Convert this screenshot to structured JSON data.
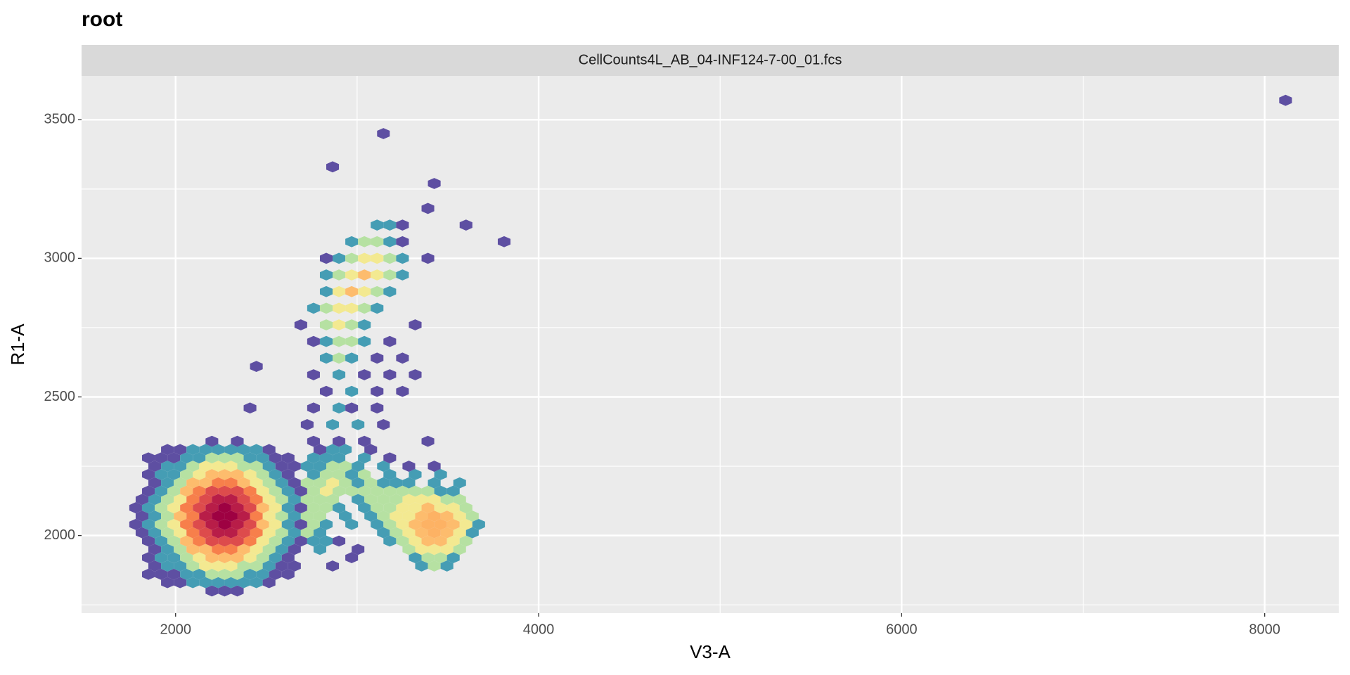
{
  "chart_data": {
    "type": "hexbin",
    "title": "root",
    "strip_label": "CellCounts4L_AB_04-INF124-7-00_01.fcs",
    "xlabel": "V3-A",
    "ylabel": "R1-A",
    "xlim": [
      1482,
      8408
    ],
    "ylim": [
      1720,
      3658
    ],
    "xticks": [
      2000,
      4000,
      6000,
      8000
    ],
    "yticks": [
      2000,
      2500,
      3000,
      3500
    ],
    "xminor": [
      3000,
      5000,
      7000
    ],
    "yminor": [
      1750,
      2250,
      2750,
      3250
    ],
    "grid": true,
    "binwidth": [
      70,
      30
    ],
    "fill_trans": "log",
    "colors": [
      "#5e4fa2",
      "#3288bd",
      "#66c2a5",
      "#abdda4",
      "#e6f598",
      "#fee08b",
      "#fdae61",
      "#f46d43",
      "#d53e4f",
      "#9e0142"
    ],
    "rows": [
      {
        "y": 1800,
        "x": [
          2200,
          2270,
          2340
        ],
        "values": [
          1,
          1,
          1
        ]
      },
      {
        "y": 1830,
        "x": [
          1955,
          2025,
          2095,
          2165,
          2235,
          2305,
          2375,
          2445,
          2515
        ],
        "values": [
          1,
          1,
          2,
          2,
          2,
          2,
          2,
          2,
          1
        ]
      },
      {
        "y": 1860,
        "x": [
          1850,
          1920,
          1990,
          2060,
          2130,
          2200,
          2270,
          2340,
          2410,
          2480,
          2550,
          2620
        ],
        "values": [
          1,
          1,
          1,
          2,
          2,
          5,
          5,
          5,
          2,
          2,
          1,
          1
        ]
      },
      {
        "y": 1890,
        "x": [
          1885,
          1955,
          2025,
          2095,
          2165,
          2235,
          2305,
          2375,
          2445,
          2515,
          2585,
          2655,
          2865,
          3355,
          3425,
          3495
        ],
        "values": [
          1,
          2,
          2,
          5,
          10,
          10,
          10,
          5,
          5,
          2,
          1,
          1,
          1,
          2,
          5,
          2
        ]
      },
      {
        "y": 1920,
        "x": [
          1850,
          1920,
          1990,
          2060,
          2130,
          2200,
          2270,
          2340,
          2410,
          2480,
          2550,
          2620,
          2970,
          3320,
          3390,
          3460,
          3530
        ],
        "values": [
          1,
          2,
          2,
          5,
          10,
          18,
          18,
          18,
          10,
          5,
          2,
          1,
          1,
          2,
          5,
          5,
          2
        ]
      },
      {
        "y": 1950,
        "x": [
          1885,
          1955,
          2025,
          2095,
          2165,
          2235,
          2305,
          2375,
          2445,
          2515,
          2585,
          2655,
          2795,
          3005,
          3285,
          3355,
          3425,
          3495,
          3565
        ],
        "values": [
          1,
          2,
          5,
          18,
          18,
          30,
          30,
          18,
          10,
          5,
          2,
          1,
          2,
          1,
          5,
          10,
          10,
          10,
          5
        ]
      },
      {
        "y": 1980,
        "x": [
          1850,
          1920,
          1990,
          2060,
          2130,
          2200,
          2270,
          2340,
          2410,
          2480,
          2550,
          2620,
          2690,
          2760,
          2830,
          2900,
          3180,
          3250,
          3320,
          3390,
          3460,
          3530,
          3600
        ],
        "values": [
          1,
          2,
          5,
          18,
          30,
          50,
          50,
          50,
          30,
          10,
          5,
          2,
          1,
          2,
          2,
          1,
          2,
          5,
          10,
          18,
          18,
          10,
          5
        ]
      },
      {
        "y": 2010,
        "x": [
          1815,
          1885,
          1955,
          2025,
          2095,
          2165,
          2235,
          2305,
          2375,
          2445,
          2515,
          2585,
          2655,
          2725,
          2795,
          3145,
          3215,
          3285,
          3355,
          3425,
          3495,
          3565,
          3635
        ],
        "values": [
          1,
          2,
          5,
          10,
          30,
          50,
          75,
          75,
          50,
          30,
          10,
          5,
          2,
          5,
          2,
          2,
          5,
          10,
          18,
          20,
          18,
          10,
          2
        ]
      },
      {
        "y": 2040,
        "x": [
          1780,
          1850,
          1920,
          1990,
          2060,
          2130,
          2200,
          2270,
          2340,
          2410,
          2480,
          2550,
          2620,
          2690,
          2760,
          2830,
          2970,
          3110,
          3180,
          3250,
          3320,
          3390,
          3460,
          3530,
          3600,
          3670
        ],
        "values": [
          1,
          2,
          5,
          10,
          30,
          50,
          75,
          95,
          75,
          50,
          18,
          10,
          2,
          1,
          5,
          2,
          2,
          2,
          5,
          10,
          18,
          20,
          20,
          18,
          10,
          2
        ]
      },
      {
        "y": 2070,
        "x": [
          1815,
          1885,
          1955,
          2025,
          2095,
          2165,
          2235,
          2305,
          2375,
          2445,
          2515,
          2585,
          2655,
          2725,
          2795,
          2935,
          3075,
          3145,
          3215,
          3285,
          3355,
          3425,
          3495,
          3565,
          3635
        ],
        "values": [
          1,
          2,
          5,
          18,
          30,
          75,
          95,
          95,
          75,
          30,
          10,
          5,
          2,
          5,
          5,
          2,
          2,
          5,
          10,
          10,
          18,
          20,
          18,
          10,
          5
        ]
      },
      {
        "y": 2100,
        "x": [
          1780,
          1850,
          1920,
          1990,
          2060,
          2130,
          2200,
          2270,
          2340,
          2410,
          2480,
          2550,
          2620,
          2690,
          2760,
          2830,
          2900,
          3040,
          3110,
          3180,
          3250,
          3320,
          3390,
          3460,
          3530,
          3600
        ],
        "values": [
          1,
          2,
          5,
          10,
          30,
          50,
          75,
          95,
          75,
          50,
          18,
          10,
          2,
          1,
          5,
          5,
          2,
          2,
          5,
          5,
          10,
          10,
          18,
          10,
          10,
          5
        ]
      },
      {
        "y": 2130,
        "x": [
          1815,
          1885,
          1955,
          2025,
          2095,
          2165,
          2235,
          2305,
          2375,
          2445,
          2515,
          2585,
          2655,
          2725,
          2795,
          2865,
          3005,
          3075,
          3145,
          3215,
          3285,
          3355,
          3425,
          3495,
          3565
        ],
        "values": [
          1,
          2,
          5,
          10,
          30,
          50,
          75,
          75,
          50,
          30,
          10,
          5,
          2,
          5,
          5,
          5,
          2,
          5,
          5,
          5,
          10,
          10,
          10,
          5,
          5
        ]
      },
      {
        "y": 2160,
        "x": [
          1850,
          1920,
          1990,
          2060,
          2130,
          2200,
          2270,
          2340,
          2410,
          2480,
          2550,
          2620,
          2690,
          2760,
          2830,
          2900,
          2970,
          3040,
          3110,
          3180,
          3250,
          3320,
          3390,
          3460,
          3530
        ],
        "values": [
          1,
          2,
          5,
          18,
          30,
          50,
          50,
          50,
          30,
          10,
          5,
          2,
          1,
          5,
          10,
          5,
          5,
          5,
          5,
          5,
          5,
          5,
          5,
          2,
          2
        ]
      },
      {
        "y": 2190,
        "x": [
          1885,
          1955,
          2025,
          2095,
          2165,
          2235,
          2305,
          2375,
          2445,
          2515,
          2585,
          2655,
          2725,
          2795,
          2865,
          2935,
          3005,
          3075,
          3145,
          3215,
          3285,
          3425,
          3565
        ],
        "values": [
          1,
          2,
          5,
          18,
          18,
          30,
          30,
          18,
          10,
          5,
          2,
          1,
          5,
          5,
          10,
          5,
          2,
          5,
          2,
          2,
          2,
          2,
          2
        ]
      },
      {
        "y": 2220,
        "x": [
          1850,
          1920,
          1990,
          2060,
          2130,
          2200,
          2270,
          2340,
          2410,
          2480,
          2550,
          2620,
          2760,
          2830,
          2900,
          2970,
          3040,
          3180,
          3320,
          3460
        ],
        "values": [
          1,
          2,
          2,
          5,
          10,
          18,
          18,
          18,
          10,
          5,
          2,
          1,
          2,
          5,
          5,
          2,
          5,
          2,
          2,
          2
        ]
      },
      {
        "y": 2250,
        "x": [
          1885,
          1955,
          2025,
          2095,
          2165,
          2235,
          2305,
          2375,
          2445,
          2515,
          2585,
          2655,
          2725,
          2795,
          2865,
          2935,
          3005,
          3145,
          3285,
          3425
        ],
        "values": [
          1,
          2,
          2,
          5,
          10,
          10,
          10,
          5,
          5,
          2,
          1,
          1,
          2,
          2,
          5,
          5,
          2,
          2,
          1,
          1
        ]
      },
      {
        "y": 2280,
        "x": [
          1850,
          1920,
          1990,
          2060,
          2130,
          2200,
          2270,
          2340,
          2410,
          2480,
          2550,
          2620,
          2760,
          2830,
          2900,
          3040,
          3180
        ],
        "values": [
          1,
          1,
          1,
          2,
          2,
          5,
          5,
          5,
          2,
          2,
          1,
          1,
          2,
          2,
          2,
          2,
          1
        ]
      },
      {
        "y": 2310,
        "x": [
          1955,
          2025,
          2095,
          2165,
          2235,
          2305,
          2375,
          2445,
          2515,
          2795,
          2865,
          2935,
          3075
        ],
        "values": [
          1,
          1,
          2,
          2,
          2,
          2,
          2,
          2,
          1,
          1,
          2,
          2,
          1
        ]
      },
      {
        "y": 2340,
        "x": [
          2200,
          2340,
          2760,
          2900,
          3040,
          3390
        ],
        "values": [
          1,
          1,
          1,
          1,
          1,
          1
        ]
      },
      {
        "y": 2400,
        "x": [
          2725,
          2865,
          3005,
          3145
        ],
        "values": [
          1,
          2,
          2,
          1
        ]
      },
      {
        "y": 2460,
        "x": [
          2410,
          2760,
          2900,
          2970,
          3110
        ],
        "values": [
          1,
          1,
          2,
          1,
          1
        ]
      },
      {
        "y": 2520,
        "x": [
          2830,
          2970,
          3110,
          3250
        ],
        "values": [
          1,
          2,
          1,
          1
        ]
      },
      {
        "y": 2580,
        "x": [
          2760,
          2900,
          3040,
          3180,
          3320
        ],
        "values": [
          1,
          2,
          1,
          1,
          1
        ]
      },
      {
        "y": 2610,
        "x": [
          2445
        ],
        "values": [
          1
        ]
      },
      {
        "y": 2640,
        "x": [
          2830,
          2900,
          2970,
          3110,
          3250
        ],
        "values": [
          2,
          5,
          2,
          1,
          1
        ]
      },
      {
        "y": 2700,
        "x": [
          2760,
          2830,
          2900,
          2970,
          3040,
          3180
        ],
        "values": [
          1,
          2,
          5,
          5,
          2,
          1
        ]
      },
      {
        "y": 2760,
        "x": [
          2690,
          2830,
          2900,
          2970,
          3040,
          3320
        ],
        "values": [
          1,
          5,
          10,
          5,
          2,
          1
        ]
      },
      {
        "y": 2820,
        "x": [
          2760,
          2830,
          2900,
          2970,
          3040,
          3110
        ],
        "values": [
          2,
          5,
          10,
          10,
          5,
          2
        ]
      },
      {
        "y": 2880,
        "x": [
          2830,
          2900,
          2970,
          3040,
          3110,
          3180
        ],
        "values": [
          2,
          10,
          18,
          10,
          5,
          2
        ]
      },
      {
        "y": 2940,
        "x": [
          2830,
          2900,
          2970,
          3040,
          3110,
          3180,
          3250
        ],
        "values": [
          2,
          5,
          10,
          18,
          10,
          5,
          2
        ]
      },
      {
        "y": 3000,
        "x": [
          2830,
          2900,
          2970,
          3040,
          3110,
          3180,
          3250,
          3390
        ],
        "values": [
          1,
          2,
          5,
          10,
          10,
          5,
          2,
          1
        ]
      },
      {
        "y": 3060,
        "x": [
          2970,
          3040,
          3110,
          3180,
          3250,
          3810
        ],
        "values": [
          2,
          5,
          5,
          2,
          1,
          1
        ]
      },
      {
        "y": 3120,
        "x": [
          3110,
          3180,
          3250,
          3600
        ],
        "values": [
          2,
          2,
          1,
          1
        ]
      },
      {
        "y": 3180,
        "x": [
          3390
        ],
        "values": [
          1
        ]
      },
      {
        "y": 3270,
        "x": [
          3425
        ],
        "values": [
          1
        ]
      },
      {
        "y": 3330,
        "x": [
          2865
        ],
        "values": [
          1
        ]
      },
      {
        "y": 3450,
        "x": [
          3145
        ],
        "values": [
          1
        ]
      },
      {
        "y": 3570,
        "x": [
          8115
        ],
        "values": [
          1
        ]
      }
    ]
  }
}
